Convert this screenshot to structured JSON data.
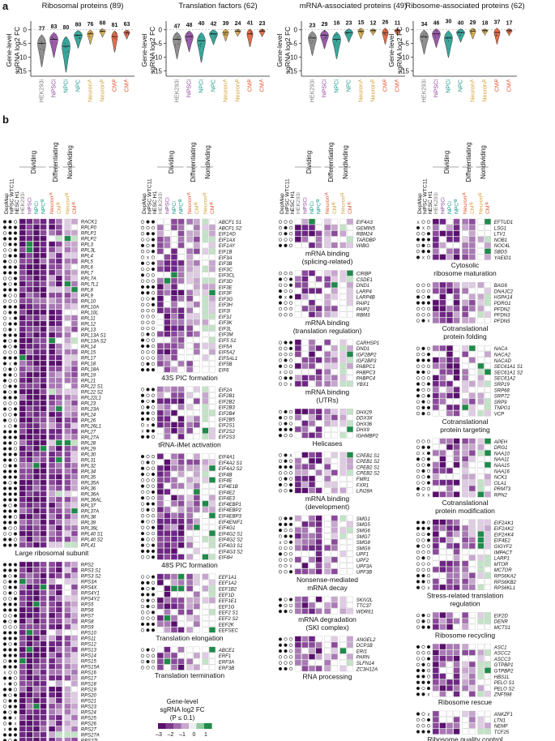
{
  "figure": {
    "panel_a": "a",
    "panel_b": "b"
  },
  "colors": {
    "dividing_cols": [
      "#7b7b7b",
      "#7a3b8f",
      "#15988a",
      "#15988a"
    ],
    "label_colors": {
      "HEK293i": "#7b7b7b",
      "hiPSCi": "#8a3f9d",
      "NPCi": "#15988a",
      "NPC_iB": "#15988a",
      "Neuron_iA": "#d3a23a",
      "Neuron_iB": "#d3a23a",
      "CM_iB": "#e1542e",
      "CM_iA": "#e1542e"
    },
    "heat_scale": [
      "#5a0f6e",
      "#7e3a8e",
      "#a16cae",
      "#c9a6cf",
      "#eeeeee",
      "#8ec99b",
      "#1f8a4a"
    ]
  },
  "violins": {
    "ylabel_line1": "Gene-level",
    "ylabel_line2": "sgRNA log",
    "ylabel_sub": "2",
    "ylabel_end": " FC",
    "yticks": [
      "0",
      "–5",
      "–10",
      "–15"
    ],
    "ylim": [
      -17,
      2
    ],
    "cell_labels": [
      "HEK293i",
      "hiPSCi",
      "NPCi",
      "NPC",
      "Neuronᵢᴬ",
      "Neuronᵢᴮ",
      "CMᵢᴮ",
      "CMᵢᴬ"
    ],
    "panels": [
      {
        "title": "Ribosomal proteins (89)",
        "counts": [
          "77",
          "83",
          "80",
          "",
          "80",
          "76",
          "68",
          "81",
          "63"
        ],
        "shown": [
          "77",
          "83",
          "80",
          "80",
          "76",
          "68",
          "81",
          "63"
        ]
      },
      {
        "title": "Translation factors (62)",
        "shown": [
          "47",
          "48",
          "40",
          "42",
          "39",
          "24",
          "41",
          "23"
        ]
      },
      {
        "title": "mRNA-associated proteins (49)",
        "shown": [
          "23",
          "29",
          "16",
          "23",
          "15",
          "12",
          "26",
          "11"
        ]
      },
      {
        "title": "Ribosome-associated proteins (62)",
        "shown": [
          "34",
          "46",
          "30",
          "40",
          "29",
          "18",
          "37",
          "17"
        ]
      }
    ]
  },
  "chart_data": [
    {
      "type": "violin",
      "title": "Ribosomal proteins (89)",
      "ylabel": "Gene-level sgRNA log2 FC",
      "ylim": [
        -17,
        2
      ],
      "categories": [
        "HEK293i",
        "hiPSCi",
        "NPCi",
        "NPC",
        "Neuron iA",
        "Neuron iB",
        "CM iB",
        "CM iA"
      ],
      "counts": [
        77,
        83,
        80,
        80,
        76,
        68,
        81,
        63
      ],
      "medians": [
        -5,
        -3.5,
        -6,
        -2,
        -1.5,
        -0.5,
        -2.5,
        -1
      ]
    },
    {
      "type": "violin",
      "title": "Translation factors (62)",
      "ylabel": "Gene-level sgRNA log2 FC",
      "ylim": [
        -17,
        2
      ],
      "categories": [
        "HEK293i",
        "hiPSCi",
        "NPCi",
        "NPC",
        "Neuron iA",
        "Neuron iB",
        "CM iB",
        "CM iA"
      ],
      "counts": [
        47,
        48,
        40,
        42,
        39,
        24,
        41,
        23
      ],
      "medians": [
        -3.5,
        -2.5,
        -4,
        -1.5,
        -1,
        -0.5,
        -1.5,
        -0.5
      ]
    },
    {
      "type": "violin",
      "title": "mRNA-associated proteins (49)",
      "ylabel": "Gene-level sgRNA log2 FC",
      "ylim": [
        -17,
        2
      ],
      "categories": [
        "HEK293i",
        "hiPSCi",
        "NPCi",
        "NPC",
        "Neuron iA",
        "Neuron iB",
        "CM iB",
        "CM iA"
      ],
      "counts": [
        23,
        29,
        16,
        23,
        15,
        12,
        26,
        11
      ],
      "medians": [
        -3,
        -2,
        -3.5,
        -1,
        -0.5,
        -0.3,
        -1,
        -0.3
      ]
    },
    {
      "type": "violin",
      "title": "Ribosome-associated proteins (62)",
      "ylabel": "Gene-level sgRNA log2 FC",
      "ylim": [
        -17,
        2
      ],
      "categories": [
        "HEK293i",
        "hiPSCi",
        "NPCi",
        "NPC",
        "Neuron iA",
        "Neuron iB",
        "CM iB",
        "CM iA"
      ],
      "counts": [
        34,
        46,
        30,
        40,
        29,
        18,
        37,
        17
      ],
      "medians": [
        -2.5,
        -1.5,
        -3,
        -1,
        -0.5,
        -0.3,
        -1,
        -0.3
      ]
    }
  ],
  "heatmap": {
    "group_headers": [
      "Dividing",
      "Differentiating",
      "Nondividing"
    ],
    "row_headers": [
      "DepMap",
      "hiPSC WTC11",
      "hESC H1"
    ],
    "col_labels": [
      "HEK293i",
      "hiPSCi",
      "NPCi",
      "NPCⁱᴮ",
      "Neuronⁱᴬ",
      "CMⁱᴮ",
      "Neuronⁱᴮ",
      "CMⁱᴬ"
    ],
    "legend": {
      "title1": "Gene-level",
      "title2": "sgRNA log2 FC",
      "title3": "(P ≤ 0.1)",
      "ticks": [
        "–3",
        "–2",
        "–1",
        "0",
        "1"
      ]
    },
    "columns": [
      {
        "blocks": [
          {
            "title": "Large ribosomal subunit",
            "genes": [
              "RACK1",
              "RPLP0",
              "RPLP1",
              "RPLP2",
              "RPL3",
              "RPL3L",
              "RPL4",
              "RPL5",
              "RPL6",
              "RPL7",
              "RPL7A",
              "RPL7L1",
              "RPL8",
              "RPL9",
              "RPL10",
              "RPL10A",
              "RPL10L",
              "RPL11",
              "RPL12",
              "RPL13",
              "RPL13A S1",
              "RPL13A S2",
              "RPL14",
              "RPL15",
              "RPL17",
              "RPL18",
              "RPL18A",
              "RPL19",
              "RPL21",
              "RPL22 S1",
              "RPL22 S2",
              "RPL22L1",
              "RPL23",
              "RPL23A",
              "RPL24",
              "RPL26",
              "RPL26L1",
              "RPL27",
              "RPL27A",
              "RPL28",
              "RPL29",
              "RPL30",
              "RPL31",
              "RPL32",
              "RPL34",
              "RPL35",
              "RPL35A",
              "RPL36",
              "RPL36A",
              "RPL36AL",
              "RPL37",
              "RPL37A",
              "RPL38",
              "RPL39",
              "RPL39L",
              "RPL40 S1",
              "RPL40 S2",
              "RPL41"
            ]
          },
          {
            "title": "Small ribosomal subunit",
            "genes": [
              "RPS2",
              "RPS3 S1",
              "RPS3 S2",
              "RPS3A",
              "RPS4X",
              "RPS4Y1",
              "RPS4Y2",
              "RPS5",
              "RPS6",
              "RPS7",
              "RPS8",
              "RPS9",
              "RPS10",
              "RPS11",
              "RPS12",
              "RPS13",
              "RPS14",
              "RPS15",
              "RPS15A",
              "RPS16",
              "RPS17",
              "RPS18",
              "RPS19",
              "RPS20",
              "RPS21",
              "RPS23",
              "RPS24",
              "RPS25",
              "RPS26",
              "RPS27",
              "RPS27A",
              "RPS27L",
              "RPS28",
              "RPS29 S1",
              "RPS29 S2",
              "RPS30"
            ]
          }
        ]
      },
      {
        "blocks": [
          {
            "title": "43S PIC formation",
            "genes": [
              "ABCF1 S1",
              "ABCF1 S2",
              "EIF1AD",
              "EIF1AX",
              "EIF1AY",
              "EIF1B",
              "EIF3A",
              "EIF3B",
              "EIF3C",
              "EIF3CL",
              "EIF3D",
              "EIF3E",
              "EIF3F",
              "EIF3G",
              "EIF3H",
              "EIF3I",
              "EIF3J",
              "EIF3K",
              "EIF3L",
              "EIF3M",
              "EIF5 S1",
              "EIF5A",
              "EIF5A2",
              "EIF5AL1",
              "EIF5B",
              "EIF6"
            ]
          },
          {
            "title": "tRNA-iMet activation",
            "genes": [
              "EIF2A",
              "EIF2B1",
              "EIF2B2",
              "EIF2B3",
              "EIF2B4",
              "EIF2B5",
              "EIF2S1",
              "EIF2S2",
              "EIF2S3"
            ]
          },
          {
            "title": "48S PIC formation",
            "genes": [
              "EIF4A1",
              "EIF4A2 S1",
              "EIF4A2 S2",
              "EIF4B",
              "EIF4E",
              "EIF4E1B",
              "EIF4E2",
              "EIF4E3",
              "EIF4EBP1",
              "EIF4EBP2",
              "EIF4EBP3",
              "EIF4ENIF1",
              "EIF4G1",
              "EIF4G2 S1",
              "EIF4G2 S2",
              "EIF4G3 S1",
              "EIF4G3 S2",
              "EIF4H"
            ]
          },
          {
            "title": "Translation elongation",
            "genes": [
              "EEF1A1",
              "EEF1A2",
              "EEF1B2",
              "EEF1D",
              "EEF1E1",
              "EEF1G",
              "EEF2 S1",
              "EEF2 S2",
              "EEF2K",
              "EEFSEC"
            ]
          },
          {
            "title": "Translation termination",
            "genes": [
              "ABCE1",
              "ERF1",
              "ERF3A",
              "ERF3B"
            ]
          }
        ]
      },
      {
        "blocks": [
          {
            "title": "mRNA binding",
            "title2": "(splicing-related)",
            "genes": [
              "EIF4A3",
              "GEMIN5",
              "RBM24",
              "TARDBP",
              "WIBG"
            ]
          },
          {
            "title": "mRNA binding",
            "title2": "(translation regulation)",
            "genes": [
              "CIRBP",
              "CSDE1",
              "DND1",
              "LARP4",
              "LARP4B",
              "PAIP1",
              "PAIP2",
              "RBM3"
            ]
          },
          {
            "title": "mRNA binding",
            "title2": "(UTRs)",
            "genes": [
              "CARHSP1",
              "DND1",
              "IGF2BP2",
              "IGF2BP3",
              "PABPC1",
              "PABPC3",
              "PABPC4",
              "YBX1"
            ]
          },
          {
            "title": "Helicases",
            "genes": [
              "DHX29",
              "DDX3X",
              "DHX36",
              "DHX9",
              "IGHMBP2"
            ]
          },
          {
            "title": "mRNA binding",
            "title2": "(development)",
            "genes": [
              "CPEB1 S1",
              "CPEB1 S2",
              "CPEB2 S1",
              "CPEB2 S2",
              "FMR1",
              "FXR1",
              "LIN28A"
            ]
          },
          {
            "title": "Nonsense-mediated",
            "title2": "mRNA decay",
            "genes": [
              "SMG1",
              "SMG5",
              "SMG6",
              "SMG7",
              "SMG8",
              "SMG9",
              "UPF1",
              "UPF2",
              "UPF3A",
              "UPF3B"
            ]
          },
          {
            "title": "mRNA degradation",
            "title2": "(SKI complex)",
            "genes": [
              "SKIV2L",
              "TTC37",
              "WDR61"
            ]
          },
          {
            "title": "RNA processing",
            "genes": [
              "ANGEL2",
              "DCP1B",
              "ERI1",
              "PARN",
              "SLFN14",
              "ZC3H12A"
            ]
          }
        ]
      },
      {
        "blocks": [
          {
            "title": "Cytosolic",
            "title2": "ribosome maturation",
            "genes": [
              "EFTUD1",
              "LSG1",
              "LTV1",
              "NOB1",
              "NOC4L",
              "SBDS",
              "YAEID1"
            ]
          },
          {
            "title": "Cotranslational",
            "title2": "protein folding",
            "genes": [
              "BAG6",
              "DNAJC2",
              "HSPA14",
              "PDRG1",
              "PFDN2",
              "PFDN3",
              "PFDN5"
            ]
          },
          {
            "title": "Cotranslational",
            "title2": "protein targeting",
            "genes": [
              "NACA",
              "NACA2",
              "NACAD",
              "SEC61A1 S1",
              "SEC61A1 S2",
              "SEC61A2",
              "SRP19",
              "SRP68",
              "SRP72",
              "SRP9",
              "TNPO1",
              "VCP"
            ]
          },
          {
            "title": "Cotranslational",
            "title2": "protein modification",
            "genes": [
              "APEH",
              "DRG1",
              "NAA10",
              "NAA11",
              "NAA15",
              "NAA16",
              "NCK1",
              "OLA1",
              "PRMT3",
              "RPN2"
            ]
          },
          {
            "title": "Stress-related translation",
            "title2": "regulation",
            "genes": [
              "EIF2AK1",
              "EIF2AK2",
              "EIF2AK4",
              "EIF4E2",
              "GIGYF2",
              "IMPACT",
              "LARP1",
              "MTOR",
              "MCTOR",
              "RPS6KA2",
              "RPS6KB2",
              "RPS6KL1"
            ]
          },
          {
            "title": "Ribosome recycling",
            "genes": [
              "EIF2D",
              "DENR",
              "MCTS1"
            ]
          },
          {
            "title": "Ribosome rescue",
            "genes": [
              "ASC1",
              "ASCC2",
              "ASCC3",
              "GTPBP1",
              "GTPBP2",
              "HBS1L",
              "PELO S1",
              "PELO S2",
              "ZNF598"
            ]
          },
          {
            "title": "Ribosome quality control",
            "title2": "(RQC)",
            "genes": [
              "ANKZF1",
              "LTN1",
              "NEMF",
              "TCF25"
            ]
          }
        ]
      }
    ]
  }
}
